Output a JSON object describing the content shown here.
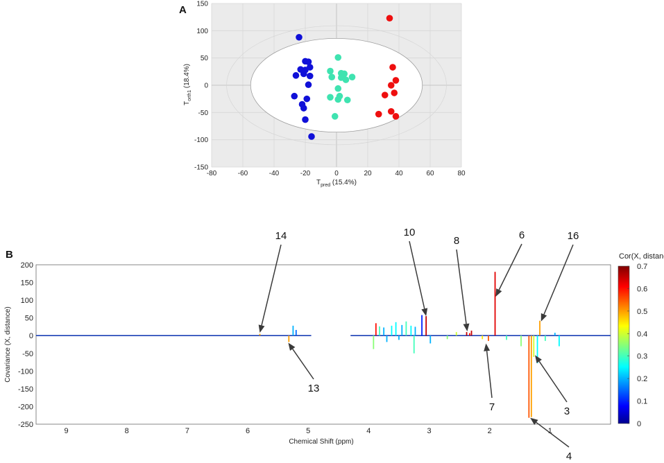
{
  "chart_data": [
    {
      "panel": "A",
      "type": "scatter",
      "xlabel": "T",
      "xlabel_sub": "pred",
      "xlabel_suffix": " (15.4%)",
      "ylabel": "T",
      "ylabel_sub": "orth1",
      "ylabel_suffix": " (18.4%)",
      "xlim": [
        -80,
        80
      ],
      "ylim": [
        -150,
        150
      ],
      "xticks": [
        -80,
        -60,
        -40,
        -20,
        0,
        20,
        40,
        60,
        80
      ],
      "yticks": [
        -150,
        -100,
        -50,
        0,
        50,
        100,
        150
      ],
      "grid": true,
      "background": "#ebebeb",
      "ellipse": {
        "cx": 0,
        "cy": 0,
        "rx": 55,
        "ry": 86
      },
      "series": [
        {
          "color": "#1010d8",
          "points": [
            [
              -24,
              88
            ],
            [
              -20,
              44
            ],
            [
              -18,
              43
            ],
            [
              -17,
              33
            ],
            [
              -23,
              29
            ],
            [
              -20,
              28
            ],
            [
              -17,
              17
            ],
            [
              -26,
              18
            ],
            [
              -21,
              21
            ],
            [
              -18,
              1
            ],
            [
              -27,
              -20
            ],
            [
              -19,
              -25
            ],
            [
              -22,
              -35
            ],
            [
              -21,
              -42
            ],
            [
              -20,
              -63
            ],
            [
              -16,
              -94
            ]
          ]
        },
        {
          "color": "#3fe3b0",
          "points": [
            [
              1,
              51
            ],
            [
              -4,
              26
            ],
            [
              3,
              22
            ],
            [
              5,
              21
            ],
            [
              -3,
              15
            ],
            [
              3,
              14
            ],
            [
              10,
              15
            ],
            [
              6,
              10
            ],
            [
              1,
              -6
            ],
            [
              2,
              -20
            ],
            [
              -4,
              -22
            ],
            [
              1,
              -26
            ],
            [
              7,
              -27
            ],
            [
              -1,
              -57
            ]
          ]
        },
        {
          "color": "#ee0f0f",
          "points": [
            [
              34,
              123
            ],
            [
              36,
              33
            ],
            [
              38,
              9
            ],
            [
              35,
              0
            ],
            [
              37,
              -14
            ],
            [
              31,
              -18
            ],
            [
              27,
              -53
            ],
            [
              35,
              -48
            ],
            [
              38,
              -57
            ]
          ]
        }
      ]
    },
    {
      "panel": "B",
      "type": "line",
      "xlabel": "Chemical Shift (ppm)",
      "ylabel": "Covariance (X, distance)",
      "xlim": [
        9.5,
        0
      ],
      "ylim": [
        -250,
        200
      ],
      "xticks": [
        9,
        8,
        7,
        6,
        5,
        4,
        3,
        2,
        1
      ],
      "yticks": [
        -250,
        -200,
        -150,
        -100,
        -50,
        0,
        50,
        100,
        150,
        200
      ],
      "excluded_region": [
        4.3,
        4.95
      ],
      "colorbar": {
        "title": "Cor(X, distance)",
        "min": 0,
        "max": 0.7,
        "ticks": [
          0,
          0.1,
          0.2,
          0.3,
          0.4,
          0.5,
          0.6,
          0.7
        ]
      },
      "peaks": [
        {
          "x": 5.8,
          "y": 5,
          "c": 0.5
        },
        {
          "x": 5.32,
          "y": -18,
          "c": 0.5
        },
        {
          "x": 5.25,
          "y": 28,
          "c": 0.2
        },
        {
          "x": 5.2,
          "y": 16,
          "c": 0.15
        },
        {
          "x": 3.92,
          "y": -38,
          "c": 0.35
        },
        {
          "x": 3.88,
          "y": 35,
          "c": 0.6
        },
        {
          "x": 3.82,
          "y": 26,
          "c": 0.3
        },
        {
          "x": 3.75,
          "y": 23,
          "c": 0.2
        },
        {
          "x": 3.7,
          "y": -18,
          "c": 0.2
        },
        {
          "x": 3.62,
          "y": 28,
          "c": 0.25
        },
        {
          "x": 3.55,
          "y": 38,
          "c": 0.25
        },
        {
          "x": 3.5,
          "y": -12,
          "c": 0.2
        },
        {
          "x": 3.45,
          "y": 30,
          "c": 0.2
        },
        {
          "x": 3.38,
          "y": 40,
          "c": 0.3
        },
        {
          "x": 3.3,
          "y": 28,
          "c": 0.25
        },
        {
          "x": 3.25,
          "y": -50,
          "c": 0.3
        },
        {
          "x": 3.23,
          "y": 25,
          "c": 0.2
        },
        {
          "x": 3.12,
          "y": 58,
          "c": 0.1
        },
        {
          "x": 3.05,
          "y": 55,
          "c": 0.65
        },
        {
          "x": 2.98,
          "y": -22,
          "c": 0.2
        },
        {
          "x": 2.7,
          "y": -10,
          "c": 0.35
        },
        {
          "x": 2.55,
          "y": 10,
          "c": 0.4
        },
        {
          "x": 2.38,
          "y": 10,
          "c": 0.65
        },
        {
          "x": 2.33,
          "y": 7,
          "c": 0.6
        },
        {
          "x": 2.3,
          "y": 14,
          "c": 0.65
        },
        {
          "x": 2.12,
          "y": -10,
          "c": 0.45
        },
        {
          "x": 2.02,
          "y": -15,
          "c": 0.55
        },
        {
          "x": 1.91,
          "y": 180,
          "c": 0.63
        },
        {
          "x": 1.72,
          "y": -12,
          "c": 0.3
        },
        {
          "x": 1.48,
          "y": -30,
          "c": 0.35
        },
        {
          "x": 1.35,
          "y": -232,
          "c": 0.55
        },
        {
          "x": 1.31,
          "y": -230,
          "c": 0.5
        },
        {
          "x": 1.27,
          "y": -60,
          "c": 0.4
        },
        {
          "x": 1.21,
          "y": -78,
          "c": 0.25
        },
        {
          "x": 1.17,
          "y": 42,
          "c": 0.5
        },
        {
          "x": 1.08,
          "y": -15,
          "c": 0.3
        },
        {
          "x": 0.92,
          "y": 8,
          "c": 0.2
        },
        {
          "x": 0.85,
          "y": -30,
          "c": 0.25
        }
      ],
      "annotations": [
        {
          "label": "14",
          "target": [
            5.8,
            8
          ]
        },
        {
          "label": "13",
          "target": [
            5.33,
            -20
          ]
        },
        {
          "label": "10",
          "target": [
            3.05,
            55
          ]
        },
        {
          "label": "8",
          "target": [
            2.37,
            12
          ]
        },
        {
          "label": "6",
          "target": [
            1.9,
            110
          ]
        },
        {
          "label": "16",
          "target": [
            1.15,
            40
          ]
        },
        {
          "label": "7",
          "target": [
            2.06,
            -22
          ]
        },
        {
          "label": "3",
          "target": [
            1.25,
            -55
          ]
        },
        {
          "label": "4",
          "target": [
            1.33,
            -232
          ]
        }
      ]
    }
  ]
}
